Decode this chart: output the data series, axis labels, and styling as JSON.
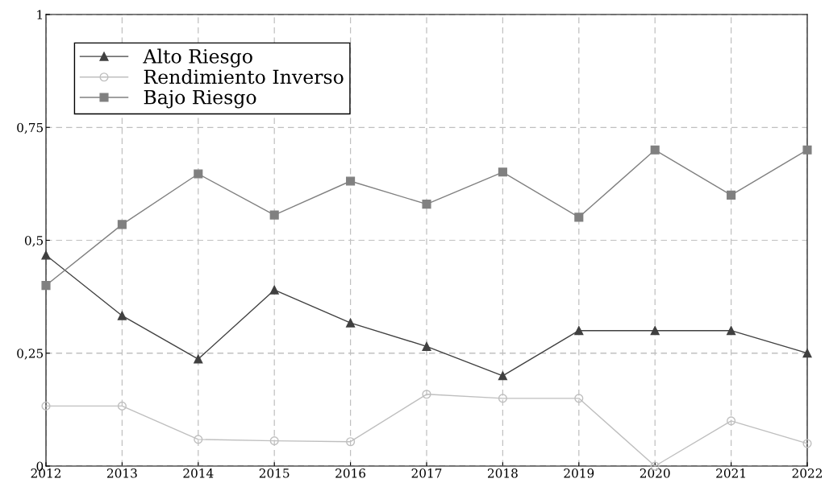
{
  "chart_data": {
    "type": "line",
    "x": [
      2012,
      2013,
      2014,
      2015,
      2016,
      2017,
      2018,
      2019,
      2020,
      2021,
      2022
    ],
    "series": [
      {
        "name": "Alto Riesgo",
        "color": "#404040",
        "marker": "triangle",
        "values": [
          0.467,
          0.333,
          0.237,
          0.39,
          0.317,
          0.265,
          0.2,
          0.3,
          0.3,
          0.3,
          0.25
        ]
      },
      {
        "name": "Rendimiento Inverso",
        "color": "#bfbfbf",
        "marker": "circle",
        "values": [
          0.133,
          0.133,
          0.059,
          0.056,
          0.054,
          0.159,
          0.15,
          0.15,
          0,
          0.1,
          0.05
        ]
      },
      {
        "name": "Bajo Riesgo",
        "color": "#808080",
        "marker": "square",
        "values": [
          0.4,
          0.535,
          0.647,
          0.556,
          0.631,
          0.58,
          0.651,
          0.551,
          0.7,
          0.6,
          0.7
        ]
      }
    ],
    "xlim": [
      2012,
      2022
    ],
    "xticks": [
      2012,
      2013,
      2014,
      2015,
      2016,
      2017,
      2018,
      2019,
      2020,
      2021,
      2022
    ],
    "ylim": [
      0,
      1
    ],
    "yticks": [
      0,
      {
        "value": 0.25,
        "label": "0,25"
      },
      {
        "value": 0.5,
        "label": "0,5"
      },
      {
        "value": 0.75,
        "label": "0,75"
      },
      1
    ],
    "grid": true,
    "legend": "top left",
    "line_style": "solid"
  }
}
